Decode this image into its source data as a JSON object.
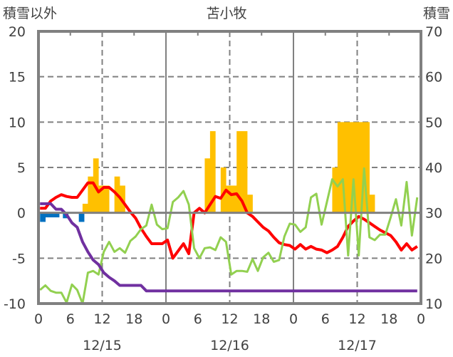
{
  "chart_data": {
    "type": "bar+line",
    "title": "苫小牧",
    "ylabel_left": "積雪以外",
    "ylabel_right": "積雪",
    "ylim_left": [
      -10,
      20
    ],
    "yticks_left": [
      "20",
      "15",
      "10",
      "5",
      "0",
      "-5",
      "-10"
    ],
    "ylim_right": [
      10,
      70
    ],
    "yticks_right": [
      "70",
      "60",
      "50",
      "40",
      "30",
      "20",
      "10"
    ],
    "xlim_hours": [
      0,
      72
    ],
    "xticks": [
      "0",
      "6",
      "12",
      "18",
      "0",
      "6",
      "12",
      "18",
      "0",
      "6",
      "12",
      "18",
      "0"
    ],
    "date_labels": [
      "12/15",
      "12/16",
      "12/17"
    ],
    "grid": "on",
    "legend": "none",
    "colors": {
      "yellow": "#FFC000",
      "blue": "#0070C0",
      "red": "#FF0000",
      "green": "#92D050",
      "purple": "#7030A0",
      "axis": "#808080"
    },
    "bar_series": [
      {
        "name": "yellow-bars",
        "color": "#FFC000",
        "bars": [
          [
            8,
            1
          ],
          [
            9,
            4
          ],
          [
            10,
            6
          ],
          [
            11,
            3
          ],
          [
            12,
            3
          ],
          [
            14,
            4
          ],
          [
            15,
            3
          ],
          [
            31,
            6
          ],
          [
            32,
            9
          ],
          [
            34,
            5
          ],
          [
            35,
            3
          ],
          [
            36,
            3
          ],
          [
            37,
            9
          ],
          [
            38,
            9
          ],
          [
            39,
            2
          ],
          [
            55,
            5
          ],
          [
            56,
            10
          ],
          [
            57,
            10
          ],
          [
            58,
            10
          ],
          [
            59,
            10
          ],
          [
            60,
            10
          ],
          [
            61,
            10
          ],
          [
            62,
            2
          ]
        ]
      },
      {
        "name": "blue-bars",
        "color": "#0070C0",
        "bars": [
          [
            0,
            -1.0
          ],
          [
            0.6,
            -0.5
          ],
          [
            1.6,
            -0.5
          ],
          [
            2.6,
            -0.5
          ],
          [
            4.3,
            -0.6
          ],
          [
            7.3,
            -1.0
          ]
        ]
      }
    ],
    "line_series": [
      {
        "name": "red-line",
        "color": "#FF0000",
        "values": [
          0.5,
          0.5,
          1.3,
          1.7,
          2.0,
          1.8,
          1.7,
          1.7,
          2.5,
          3.3,
          3.3,
          2.3,
          2.8,
          2.8,
          2.3,
          1.7,
          0.9,
          0.1,
          -0.6,
          -1.7,
          -2.6,
          -3.4,
          -3.4,
          -3.4,
          -3.0,
          -5.0,
          -4.2,
          -3.4,
          -4.5,
          0,
          0.5,
          0,
          0.9,
          1.8,
          1.6,
          2.5,
          2.0,
          2.1,
          1.3,
          0,
          -0.4,
          -1.0,
          -1.6,
          -2.0,
          -2.7,
          -3.3,
          -3.5,
          -3.6,
          -4.0,
          -3.5,
          -4.0,
          -3.7,
          -4.0,
          -4.1,
          -4.4,
          -4.1,
          -3.7,
          -2.7,
          -1.5,
          -0.9,
          -0.4,
          -0.7,
          -1.1,
          -1.5,
          -1.9,
          -2.2,
          -2.5,
          -3.2,
          -4.1,
          -3.4,
          -4.1,
          -3.7
        ]
      },
      {
        "name": "green-line",
        "color": "#92D050",
        "values": [
          -8.5,
          -8.0,
          -8.6,
          -8.8,
          -8.8,
          -9.9,
          -7.9,
          -8.5,
          -10,
          -6.6,
          -6.4,
          -6.8,
          -4.3,
          -3.2,
          -4.3,
          -3.9,
          -4.4,
          -3.1,
          -2.6,
          -1.8,
          -1.4,
          0.9,
          -1.3,
          -1.8,
          -1.7,
          1.2,
          1.7,
          2.4,
          0.9,
          -3.9,
          -5.0,
          -3.9,
          -3.8,
          -4.1,
          -2.7,
          -3.2,
          -6.8,
          -6.4,
          -6.4,
          -6.5,
          -5.1,
          -6.4,
          -4.9,
          -4.4,
          -5.4,
          -5.2,
          -2.6,
          -1.2,
          -1.3,
          -2.1,
          -1.6,
          1.7,
          2.1,
          -1.3,
          1.2,
          3.7,
          2.9,
          3.7,
          -4.7,
          3.7,
          -4.7,
          4.9,
          -2.7,
          -3.0,
          -2.4,
          -2.4,
          -0.5,
          1.5,
          -1.4,
          3.4,
          -2.5,
          1.7
        ]
      },
      {
        "name": "purple-line",
        "color": "#7030A0",
        "values": [
          1.0,
          1.0,
          1.0,
          0.4,
          0.4,
          -0.2,
          -1.1,
          -1.6,
          -3.2,
          -4.3,
          -5.2,
          -5.7,
          -6.6,
          -7.1,
          -7.5,
          -8.0,
          -8.0,
          -8.0,
          -8.0,
          -8.0,
          -8.6,
          -8.6,
          -8.6,
          -8.6,
          -8.6,
          -8.6,
          -8.6,
          -8.6,
          -8.6,
          -8.6,
          -8.6,
          -8.6,
          -8.6,
          -8.6,
          -8.6,
          -8.6,
          -8.6,
          -8.6,
          -8.6,
          -8.6,
          -8.6,
          -8.6,
          -8.6,
          -8.6,
          -8.6,
          -8.6,
          -8.6,
          -8.6,
          -8.6,
          -8.6,
          -8.6,
          -8.6,
          -8.6,
          -8.6,
          -8.6,
          -8.6,
          -8.6,
          -8.6,
          -8.6,
          -8.6,
          -8.6,
          -8.6,
          -8.6,
          -8.6,
          -8.6,
          -8.6,
          -8.6,
          -8.6,
          -8.6,
          -8.6,
          -8.6,
          -8.6
        ]
      }
    ]
  }
}
